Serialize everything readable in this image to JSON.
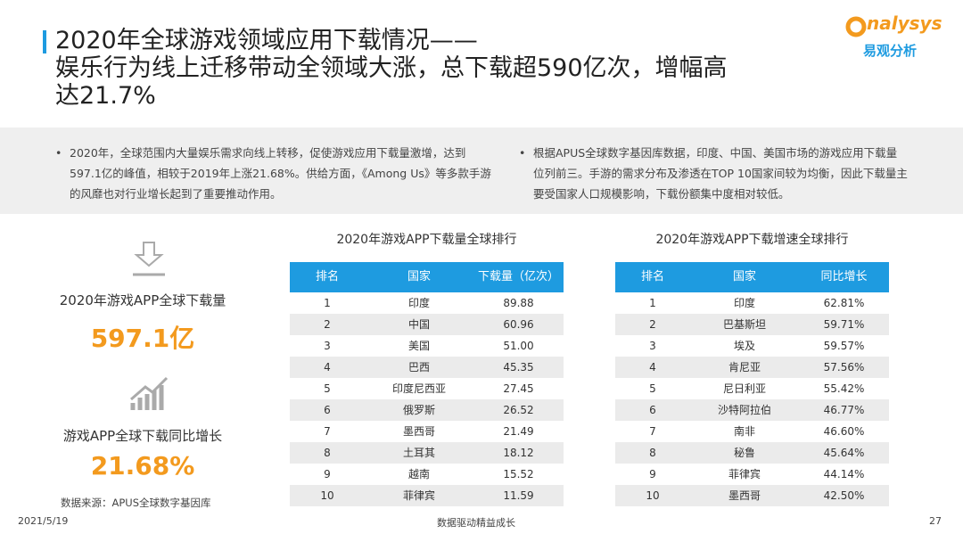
{
  "header": {
    "title_lines": [
      "2020年全球游戏领域应用下载情况——",
      "娱乐行为线上迁移带动全领域大涨，总下载超590亿次，增幅高",
      "达21.7%"
    ],
    "logo_en": "nalysys",
    "logo_cn": "易观分析"
  },
  "bullets": [
    "2020年，全球范围内大量娱乐需求向线上转移，促使游戏应用下载量激增，达到597.1亿的峰值，相较于2019年上涨21.68%。供给方面，《Among Us》等多款手游的风靡也对行业增长起到了重要推动作用。",
    "根据APUS全球数字基因库数据，印度、中国、美国市场的游戏应用下载量位列前三。手游的需求分布及渗透在TOP 10国家间较为均衡，因此下载量主要受国家人口规模影响，下载份额集中度相对较低。"
  ],
  "stats": [
    {
      "label": "2020年游戏APP全球下载量",
      "value": "597.1亿"
    },
    {
      "label": "游戏APP全球下载同比增长",
      "value": "21.68%"
    }
  ],
  "source": "数据来源：APUS全球数字基因库",
  "tables": [
    {
      "title": "2020年游戏APP下载量全球排行",
      "columns": [
        "排名",
        "国家",
        "下载量（亿次）"
      ],
      "rows": [
        [
          "1",
          "印度",
          "89.88"
        ],
        [
          "2",
          "中国",
          "60.96"
        ],
        [
          "3",
          "美国",
          "51.00"
        ],
        [
          "4",
          "巴西",
          "45.35"
        ],
        [
          "5",
          "印度尼西亚",
          "27.45"
        ],
        [
          "6",
          "俄罗斯",
          "26.52"
        ],
        [
          "7",
          "墨西哥",
          "21.49"
        ],
        [
          "8",
          "土耳其",
          "18.12"
        ],
        [
          "9",
          "越南",
          "15.52"
        ],
        [
          "10",
          "菲律宾",
          "11.59"
        ]
      ]
    },
    {
      "title": "2020年游戏APP下载增速全球排行",
      "columns": [
        "排名",
        "国家",
        "同比增长"
      ],
      "rows": [
        [
          "1",
          "印度",
          "62.81%"
        ],
        [
          "2",
          "巴基斯坦",
          "59.71%"
        ],
        [
          "3",
          "埃及",
          "59.57%"
        ],
        [
          "4",
          "肯尼亚",
          "57.56%"
        ],
        [
          "5",
          "尼日利亚",
          "55.42%"
        ],
        [
          "6",
          "沙特阿拉伯",
          "46.77%"
        ],
        [
          "7",
          "南非",
          "46.60%"
        ],
        [
          "8",
          "秘鲁",
          "45.64%"
        ],
        [
          "9",
          "菲律宾",
          "44.14%"
        ],
        [
          "10",
          "墨西哥",
          "42.50%"
        ]
      ]
    }
  ],
  "footer": {
    "date": "2021/5/19",
    "slogan": "数据驱动精益成长",
    "page": "27"
  }
}
